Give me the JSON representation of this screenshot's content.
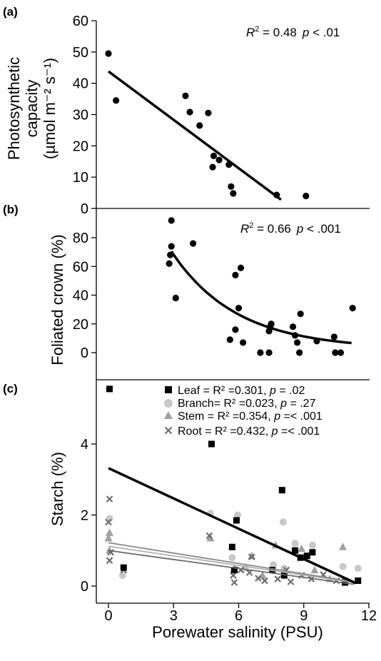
{
  "chart_data": [
    {
      "panel_label": "(a)",
      "type": "scatter",
      "ylabel_lines": [
        "Photosynthetic",
        "capacity",
        "(µmol m⁻² s⁻¹)"
      ],
      "ylim": [
        0,
        60
      ],
      "yticks": [
        "0",
        "10",
        "20",
        "30",
        "40",
        "50",
        "60"
      ],
      "annotation": {
        "r2_label": "R",
        "r2_sup": "2",
        "r2_value": " = 0.48",
        "p_label": "p",
        "p_value": " < .01"
      },
      "points": [
        {
          "x": 0.0,
          "y": 49.5
        },
        {
          "x": 0.35,
          "y": 34.5
        },
        {
          "x": 3.55,
          "y": 36.0
        },
        {
          "x": 3.75,
          "y": 30.8
        },
        {
          "x": 4.2,
          "y": 26.5
        },
        {
          "x": 4.6,
          "y": 30.5
        },
        {
          "x": 4.85,
          "y": 16.8
        },
        {
          "x": 4.8,
          "y": 13.2
        },
        {
          "x": 5.1,
          "y": 15.5
        },
        {
          "x": 5.55,
          "y": 14.0
        },
        {
          "x": 5.65,
          "y": 7.0
        },
        {
          "x": 5.75,
          "y": 4.8
        },
        {
          "x": 7.75,
          "y": 4.3
        },
        {
          "x": 9.1,
          "y": 4.0
        }
      ],
      "fit": {
        "kind": "linear",
        "x": [
          0.0,
          7.95
        ],
        "y": [
          43.8,
          2.8
        ]
      }
    },
    {
      "panel_label": "(b)",
      "type": "scatter",
      "ylabel": "Foliated crown (%)",
      "ylim": [
        -10,
        95
      ],
      "yticks": [
        "0",
        "20",
        "40",
        "60",
        "80"
      ],
      "annotation": {
        "r2_label": "R",
        "r2_sup": "2",
        "r2_value": " = 0.66",
        "p_label": "p",
        "p_value": " < .001"
      },
      "points": [
        {
          "x": 2.9,
          "y": 92
        },
        {
          "x": 2.9,
          "y": 74
        },
        {
          "x": 2.85,
          "y": 68
        },
        {
          "x": 2.8,
          "y": 62
        },
        {
          "x": 3.1,
          "y": 38
        },
        {
          "x": 3.9,
          "y": 76
        },
        {
          "x": 5.85,
          "y": 54
        },
        {
          "x": 6.1,
          "y": 59
        },
        {
          "x": 6.0,
          "y": 31
        },
        {
          "x": 5.85,
          "y": 16
        },
        {
          "x": 5.6,
          "y": 9
        },
        {
          "x": 6.2,
          "y": 7
        },
        {
          "x": 7.0,
          "y": 0
        },
        {
          "x": 7.4,
          "y": 0
        },
        {
          "x": 7.4,
          "y": 15
        },
        {
          "x": 7.5,
          "y": 20
        },
        {
          "x": 7.45,
          "y": 18
        },
        {
          "x": 8.5,
          "y": 18
        },
        {
          "x": 8.6,
          "y": 12
        },
        {
          "x": 8.85,
          "y": 27
        },
        {
          "x": 8.7,
          "y": 7
        },
        {
          "x": 8.8,
          "y": 0
        },
        {
          "x": 9.6,
          "y": 8
        },
        {
          "x": 10.4,
          "y": 11
        },
        {
          "x": 10.45,
          "y": 0
        },
        {
          "x": 10.7,
          "y": 0
        },
        {
          "x": 11.25,
          "y": 31
        }
      ],
      "fit": {
        "kind": "exp",
        "x_start": 2.9,
        "x_end": 11.2,
        "a": 68,
        "b": 0.335,
        "c": 2.5
      }
    },
    {
      "panel_label": "(c)",
      "type": "scatter",
      "ylabel": "Starch (%)",
      "xlabel": "Porewater salinity (PSU)",
      "ylim": [
        -0.35,
        5.95
      ],
      "yticks": [
        "0",
        "2",
        "4"
      ],
      "xlim": [
        -0.5,
        12
      ],
      "xticks": [
        "0",
        "3",
        "6",
        "9",
        "12"
      ],
      "series": [
        {
          "name": "Leaf",
          "legend_text": "Leaf = R² =0.301, ",
          "legend_p": "p",
          "legend_p_value": " = .02",
          "marker": "square",
          "color": "#000000",
          "points": [
            [
              0.05,
              5.55
            ],
            [
              0.7,
              0.52
            ],
            [
              4.75,
              4.0
            ],
            [
              5.7,
              1.1
            ],
            [
              5.9,
              1.85
            ],
            [
              5.8,
              0.45
            ],
            [
              8.0,
              2.7
            ],
            [
              8.6,
              1.0
            ],
            [
              8.85,
              0.8
            ],
            [
              9.15,
              0.85
            ],
            [
              9.4,
              0.95
            ],
            [
              7.55,
              0.45
            ],
            [
              8.1,
              0.3
            ],
            [
              11.5,
              0.15
            ],
            [
              10.9,
              0.1
            ]
          ],
          "fit": {
            "x": [
              0.0,
              11.4
            ],
            "y": [
              3.32,
              0.08
            ]
          }
        },
        {
          "name": "Branch",
          "legend_text": "Branch= R² =0.023, ",
          "legend_p": "p",
          "legend_p_value": " = .27",
          "marker": "circle",
          "color": "#c8c8c8",
          "points": [
            [
              0.05,
              1.9
            ],
            [
              0.65,
              0.3
            ],
            [
              4.7,
              2.05
            ],
            [
              5.95,
              2.0
            ],
            [
              5.7,
              0.8
            ],
            [
              8.05,
              1.8
            ],
            [
              8.6,
              1.2
            ],
            [
              9.4,
              1.15
            ],
            [
              7.6,
              0.6
            ],
            [
              8.1,
              0.5
            ],
            [
              10.8,
              0.55
            ],
            [
              11.5,
              0.5
            ],
            [
              6.3,
              0.5
            ]
          ],
          "fit": {
            "x": [
              0.0,
              11.3
            ],
            "y": [
              1.12,
              0.1
            ]
          }
        },
        {
          "name": "Stem",
          "legend_text": "Stem = R² =0.354, ",
          "legend_p": "p",
          "legend_p_value": " =< .001",
          "marker": "triangle",
          "color": "#a0a0a0",
          "points": [
            [
              0.05,
              1.5
            ],
            [
              0.0,
              1.35
            ],
            [
              0.05,
              1.0
            ],
            [
              4.7,
              1.35
            ],
            [
              5.8,
              0.5
            ],
            [
              6.6,
              0.85
            ],
            [
              7.7,
              1.15
            ],
            [
              8.9,
              1.05
            ],
            [
              10.8,
              1.1
            ],
            [
              9.5,
              0.45
            ],
            [
              7.1,
              0.3
            ],
            [
              10.2,
              0.2
            ]
          ],
          "fit": {
            "x": [
              0.0,
              11.3
            ],
            "y": [
              1.22,
              0.12
            ]
          }
        },
        {
          "name": "Root",
          "legend_text": "Root = R² =0.432, ",
          "legend_p": "p",
          "legend_p_value": " =< .001",
          "marker": "x",
          "color": "#6e6e6e",
          "points": [
            [
              0.05,
              2.45
            ],
            [
              0.0,
              1.8
            ],
            [
              0.1,
              0.95
            ],
            [
              0.05,
              0.72
            ],
            [
              0.7,
              0.45
            ],
            [
              4.65,
              1.42
            ],
            [
              5.75,
              0.3
            ],
            [
              5.8,
              0.1
            ],
            [
              6.1,
              0.45
            ],
            [
              6.5,
              0.38
            ],
            [
              6.6,
              0.82
            ],
            [
              6.9,
              0.22
            ],
            [
              7.2,
              0.15
            ],
            [
              7.8,
              0.2
            ],
            [
              8.2,
              0.45
            ],
            [
              8.4,
              0.12
            ],
            [
              8.9,
              0.3
            ],
            [
              9.35,
              0.2
            ],
            [
              9.9,
              0.32
            ],
            [
              10.5,
              0.15
            ],
            [
              10.9,
              0.15
            ]
          ],
          "fit": {
            "x": [
              0.0,
              11.3
            ],
            "y": [
              1.0,
              0.05
            ]
          }
        }
      ]
    }
  ]
}
